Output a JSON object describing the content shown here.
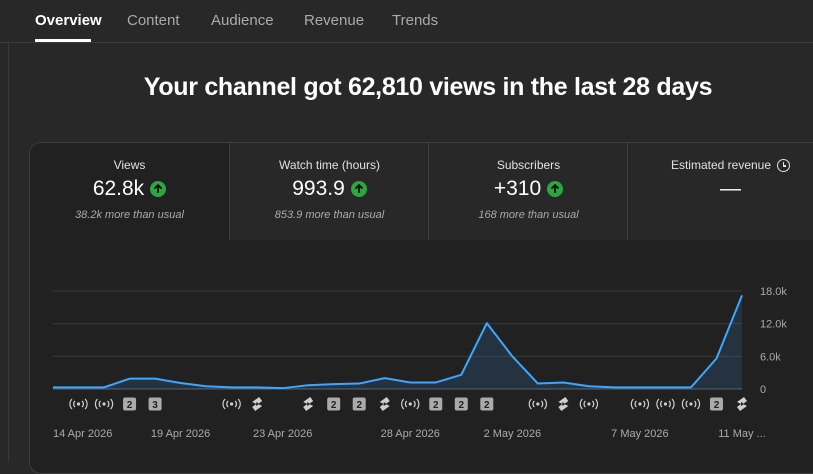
{
  "tabs": [
    {
      "label": "Overview",
      "active": true
    },
    {
      "label": "Content"
    },
    {
      "label": "Audience"
    },
    {
      "label": "Revenue"
    },
    {
      "label": "Trends"
    }
  ],
  "headline": "Your channel got 62,810 views in the last 28 days",
  "metrics": [
    {
      "label": "Views",
      "value": "62.8k",
      "sub": "38.2k more than usual",
      "trend": "up"
    },
    {
      "label": "Watch time (hours)",
      "value": "993.9",
      "sub": "853.9 more than usual",
      "trend": "up"
    },
    {
      "label": "Subscribers",
      "value": "+310",
      "sub": "168 more than usual",
      "trend": "up"
    },
    {
      "label": "Estimated revenue",
      "value": "—",
      "sub": "",
      "icon": "clock-icon"
    }
  ],
  "colors": {
    "line": "#3ea6ff",
    "up": "#2ba640",
    "background": "#282828",
    "card": "#212121"
  },
  "chart_data": {
    "type": "line",
    "x": [
      "14 Apr 2026",
      "15 Apr 2026",
      "16 Apr 2026",
      "17 Apr 2026",
      "18 Apr 2026",
      "19 Apr 2026",
      "20 Apr 2026",
      "21 Apr 2026",
      "22 Apr 2026",
      "23 Apr 2026",
      "24 Apr 2026",
      "25 Apr 2026",
      "26 Apr 2026",
      "27 Apr 2026",
      "28 Apr 2026",
      "29 Apr 2026",
      "30 Apr 2026",
      "1 May 2026",
      "2 May 2026",
      "3 May 2026",
      "4 May 2026",
      "5 May 2026",
      "6 May 2026",
      "7 May 2026",
      "8 May 2026",
      "9 May 2026",
      "10 May 2026",
      "11 May 2026"
    ],
    "values": [
      300,
      300,
      300,
      1900,
      1900,
      1100,
      500,
      300,
      300,
      150,
      700,
      900,
      1000,
      2000,
      1200,
      1200,
      2600,
      12100,
      6000,
      1000,
      1200,
      500,
      300,
      300,
      300,
      300,
      5600,
      17200
    ],
    "ylim": [
      0,
      18000
    ],
    "yticks": [
      "18.0k",
      "12.0k",
      "6.0k",
      "0"
    ],
    "ytick_values": [
      18000,
      12000,
      6000,
      0
    ],
    "xticks": [
      {
        "index": 0,
        "label": "14 Apr 2026"
      },
      {
        "index": 5,
        "label": "19 Apr 2026"
      },
      {
        "index": 9,
        "label": "23 Apr 2026"
      },
      {
        "index": 14,
        "label": "28 Apr 2026"
      },
      {
        "index": 18,
        "label": "2 May 2026"
      },
      {
        "index": 23,
        "label": "7 May 2026"
      },
      {
        "index": 27,
        "label": "11 May ..."
      }
    ],
    "grid": true,
    "markers": [
      {
        "index": 1,
        "kind": "live"
      },
      {
        "index": 2,
        "kind": "live"
      },
      {
        "index": 3,
        "kind": "badge",
        "text": "2"
      },
      {
        "index": 4,
        "kind": "badge",
        "text": "3"
      },
      {
        "index": 7,
        "kind": "live"
      },
      {
        "index": 8,
        "kind": "short"
      },
      {
        "index": 10,
        "kind": "short"
      },
      {
        "index": 11,
        "kind": "badge",
        "text": "2"
      },
      {
        "index": 12,
        "kind": "badge",
        "text": "2"
      },
      {
        "index": 13,
        "kind": "short"
      },
      {
        "index": 14,
        "kind": "live"
      },
      {
        "index": 15,
        "kind": "badge",
        "text": "2"
      },
      {
        "index": 16,
        "kind": "badge",
        "text": "2"
      },
      {
        "index": 17,
        "kind": "badge",
        "text": "2"
      },
      {
        "index": 19,
        "kind": "live"
      },
      {
        "index": 20,
        "kind": "short"
      },
      {
        "index": 21,
        "kind": "live"
      },
      {
        "index": 23,
        "kind": "live"
      },
      {
        "index": 24,
        "kind": "live"
      },
      {
        "index": 25,
        "kind": "live"
      },
      {
        "index": 26,
        "kind": "badge",
        "text": "2"
      },
      {
        "index": 27,
        "kind": "short"
      }
    ]
  }
}
